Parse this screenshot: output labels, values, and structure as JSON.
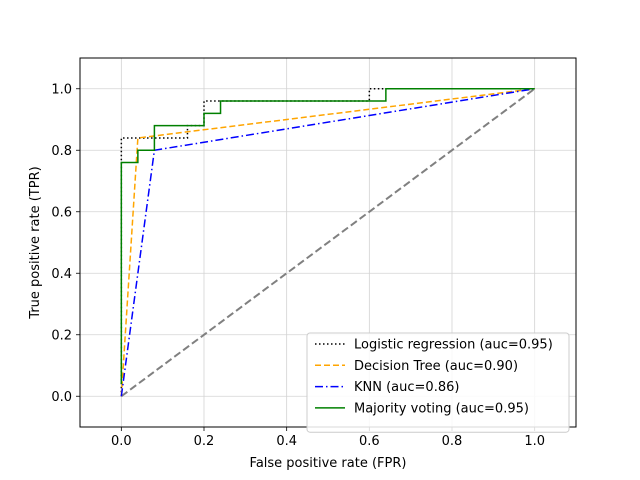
{
  "chart_data": {
    "type": "line",
    "title": "",
    "xlabel": "False positive rate (FPR)",
    "ylabel": "True positive rate (TPR)",
    "xlim": [
      -0.1,
      1.1
    ],
    "ylim": [
      -0.1,
      1.1
    ],
    "xticks": [
      0.0,
      0.2,
      0.4,
      0.6,
      0.8,
      1.0
    ],
    "yticks": [
      0.0,
      0.2,
      0.4,
      0.6,
      0.8,
      1.0
    ],
    "xtick_labels": [
      "0.0",
      "0.2",
      "0.4",
      "0.6",
      "0.8",
      "1.0"
    ],
    "ytick_labels": [
      "0.0",
      "0.2",
      "0.4",
      "0.6",
      "0.8",
      "1.0"
    ],
    "grid": true,
    "legend_position": "lower-right",
    "series": [
      {
        "name": "Logistic regression (auc=0.95)",
        "color": "#000000",
        "linestyle": "dotted",
        "x": [
          0,
          0,
          0,
          0.04,
          0.04,
          0.16,
          0.16,
          0.2,
          0.2,
          0.6,
          0.6,
          0.64,
          0.64,
          1.0
        ],
        "y": [
          0,
          0.8,
          0.84,
          0.84,
          0.84,
          0.84,
          0.88,
          0.88,
          0.96,
          0.96,
          1.0,
          1.0,
          1.0,
          1.0
        ]
      },
      {
        "name": "Decision Tree (auc=0.90)",
        "color": "#ffa500",
        "linestyle": "dashed",
        "x": [
          0,
          0.04,
          1.0
        ],
        "y": [
          0,
          0.84,
          1.0
        ]
      },
      {
        "name": "KNN (auc=0.86)",
        "color": "#0000ff",
        "linestyle": "dashdot",
        "x": [
          0,
          0.08,
          1.0
        ],
        "y": [
          0,
          0.8,
          1.0
        ]
      },
      {
        "name": "Majority voting (auc=0.95)",
        "color": "#008000",
        "linestyle": "solid",
        "x": [
          0,
          0,
          0.04,
          0.04,
          0.08,
          0.08,
          0.2,
          0.2,
          0.24,
          0.24,
          0.64,
          0.64,
          1.0
        ],
        "y": [
          0.04,
          0.76,
          0.76,
          0.8,
          0.8,
          0.88,
          0.88,
          0.92,
          0.92,
          0.96,
          0.96,
          1.0,
          1.0
        ]
      }
    ],
    "reference_line": {
      "color": "#808080",
      "linestyle": "dashed",
      "x": [
        0,
        1
      ],
      "y": [
        0,
        1
      ]
    }
  }
}
